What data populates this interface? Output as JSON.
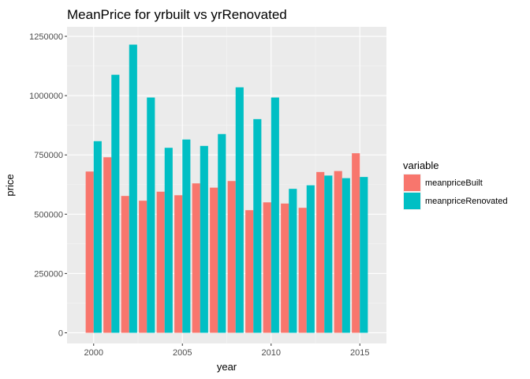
{
  "chart_data": {
    "type": "bar",
    "title": "MeanPrice for yrbuilt vs yrRenovated",
    "xlabel": "year",
    "ylabel": "price",
    "x": [
      2000,
      2001,
      2002,
      2003,
      2004,
      2005,
      2006,
      2007,
      2008,
      2009,
      2010,
      2011,
      2012,
      2013,
      2014,
      2015
    ],
    "x_ticks": [
      2000,
      2005,
      2010,
      2015
    ],
    "y_ticks": [
      0,
      250000,
      500000,
      750000,
      1000000,
      1250000
    ],
    "y_tick_labels": [
      "0",
      "250000",
      "500000",
      "750000",
      "1000000",
      "1250000"
    ],
    "xlim": [
      1998.5,
      2016.5
    ],
    "ylim": [
      -45000,
      1290000
    ],
    "grid": true,
    "legend_position": "right",
    "legend_title": "variable",
    "series": [
      {
        "name": "meanpriceBuilt",
        "color": "#F8766D",
        "values": [
          680000,
          740000,
          577000,
          557000,
          595000,
          580000,
          630000,
          612000,
          640000,
          517000,
          550000,
          545000,
          527000,
          678000,
          682000,
          757000
        ]
      },
      {
        "name": "meanpriceRenovated",
        "color": "#00BFC4",
        "values": [
          808000,
          1088000,
          1215000,
          992000,
          780000,
          815000,
          788000,
          838000,
          1035000,
          901000,
          992000,
          607000,
          622000,
          663000,
          652000,
          657000
        ]
      }
    ]
  }
}
